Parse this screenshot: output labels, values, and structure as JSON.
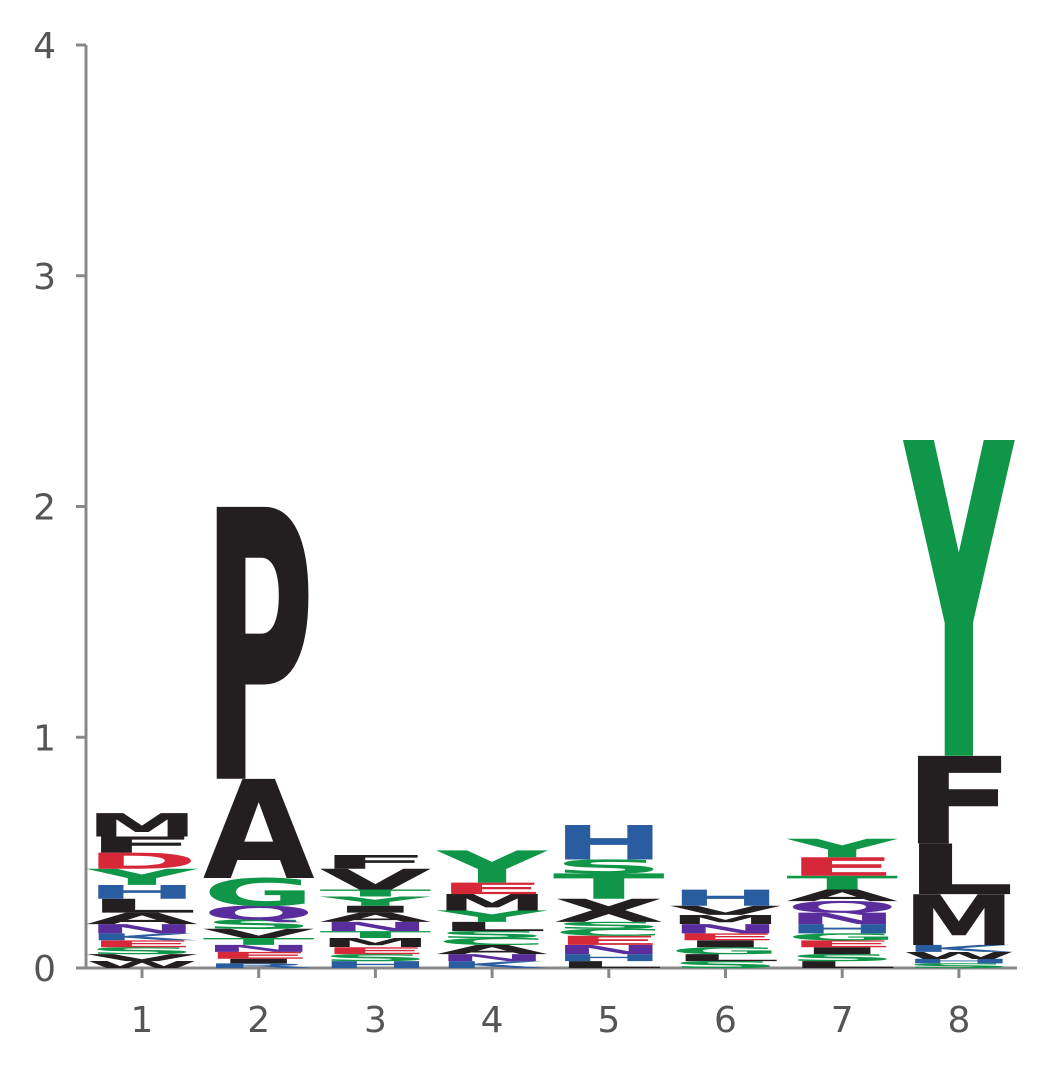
{
  "chart_data": {
    "type": "sequence-logo",
    "title": "",
    "xlabel": "",
    "ylabel": "",
    "ylim": [
      0,
      4
    ],
    "yticks": [
      0,
      1,
      2,
      3,
      4
    ],
    "positions": [
      1,
      2,
      3,
      4,
      5,
      6,
      7,
      8
    ],
    "colors": {
      "acidic": "#d62839",
      "basic": "#2a5d9f",
      "polar": "#0f9648",
      "neutral": "#5a2d9c",
      "hydrophobic": "#231f20"
    },
    "letter_color_group": {
      "A": "hydrophobic",
      "C": "polar",
      "D": "acidic",
      "E": "acidic",
      "F": "hydrophobic",
      "G": "polar",
      "H": "basic",
      "I": "hydrophobic",
      "K": "basic",
      "L": "hydrophobic",
      "M": "hydrophobic",
      "N": "neutral",
      "P": "hydrophobic",
      "Q": "neutral",
      "R": "basic",
      "S": "polar",
      "T": "polar",
      "V": "hydrophobic",
      "W": "hydrophobic",
      "Y": "polar"
    },
    "stacks": [
      {
        "position": 1,
        "letters": [
          {
            "letter": "W",
            "height": 0.03
          },
          {
            "letter": "V",
            "height": 0.03
          },
          {
            "letter": "S",
            "height": 0.03
          },
          {
            "letter": "E",
            "height": 0.03
          },
          {
            "letter": "K",
            "height": 0.03
          },
          {
            "letter": "N",
            "height": 0.04
          },
          {
            "letter": "A",
            "height": 0.05
          },
          {
            "letter": "L",
            "height": 0.06
          },
          {
            "letter": "H",
            "height": 0.06
          },
          {
            "letter": "Y",
            "height": 0.07
          },
          {
            "letter": "D",
            "height": 0.07
          },
          {
            "letter": "F",
            "height": 0.07
          },
          {
            "letter": "M",
            "height": 0.1
          }
        ]
      },
      {
        "position": 2,
        "letters": [
          {
            "letter": "R",
            "height": 0.02
          },
          {
            "letter": "I",
            "height": 0.02
          },
          {
            "letter": "E",
            "height": 0.03
          },
          {
            "letter": "N",
            "height": 0.03
          },
          {
            "letter": "T",
            "height": 0.03
          },
          {
            "letter": "V",
            "height": 0.04
          },
          {
            "letter": "S",
            "height": 0.04
          },
          {
            "letter": "Q",
            "height": 0.06
          },
          {
            "letter": "G",
            "height": 0.12
          },
          {
            "letter": "A",
            "height": 0.43
          },
          {
            "letter": "P",
            "height": 1.18
          }
        ]
      },
      {
        "position": 3,
        "letters": [
          {
            "letter": "H",
            "height": 0.03
          },
          {
            "letter": "S",
            "height": 0.03
          },
          {
            "letter": "E",
            "height": 0.03
          },
          {
            "letter": "M",
            "height": 0.04
          },
          {
            "letter": "T",
            "height": 0.03
          },
          {
            "letter": "N",
            "height": 0.04
          },
          {
            "letter": "A",
            "height": 0.04
          },
          {
            "letter": "I",
            "height": 0.03
          },
          {
            "letter": "Y",
            "height": 0.04
          },
          {
            "letter": "T",
            "height": 0.03
          },
          {
            "letter": "V",
            "height": 0.09
          },
          {
            "letter": "F",
            "height": 0.06
          }
        ]
      },
      {
        "position": 4,
        "letters": [
          {
            "letter": "K",
            "height": 0.03
          },
          {
            "letter": "N",
            "height": 0.03
          },
          {
            "letter": "A",
            "height": 0.04
          },
          {
            "letter": "C",
            "height": 0.03
          },
          {
            "letter": "S",
            "height": 0.03
          },
          {
            "letter": "L",
            "height": 0.04
          },
          {
            "letter": "Y",
            "height": 0.05
          },
          {
            "letter": "M",
            "height": 0.07
          },
          {
            "letter": "E",
            "height": 0.05
          },
          {
            "letter": "Y",
            "height": 0.14
          }
        ]
      },
      {
        "position": 5,
        "letters": [
          {
            "letter": "L",
            "height": 0.03
          },
          {
            "letter": "H",
            "height": 0.03
          },
          {
            "letter": "N",
            "height": 0.04
          },
          {
            "letter": "E",
            "height": 0.04
          },
          {
            "letter": "C",
            "height": 0.03
          },
          {
            "letter": "S",
            "height": 0.03
          },
          {
            "letter": "X",
            "height": 0.1
          },
          {
            "letter": "T",
            "height": 0.11
          },
          {
            "letter": "S",
            "height": 0.06
          },
          {
            "letter": "H",
            "height": 0.15
          }
        ]
      },
      {
        "position": 6,
        "letters": [
          {
            "letter": "S",
            "height": 0.03
          },
          {
            "letter": "L",
            "height": 0.03
          },
          {
            "letter": "G",
            "height": 0.03
          },
          {
            "letter": "I",
            "height": 0.03
          },
          {
            "letter": "E",
            "height": 0.03
          },
          {
            "letter": "N",
            "height": 0.04
          },
          {
            "letter": "M",
            "height": 0.04
          },
          {
            "letter": "V",
            "height": 0.04
          },
          {
            "letter": "H",
            "height": 0.07
          }
        ]
      },
      {
        "position": 7,
        "letters": [
          {
            "letter": "L",
            "height": 0.03
          },
          {
            "letter": "S",
            "height": 0.03
          },
          {
            "letter": "I",
            "height": 0.03
          },
          {
            "letter": "E",
            "height": 0.03
          },
          {
            "letter": "G",
            "height": 0.03
          },
          {
            "letter": "H",
            "height": 0.04
          },
          {
            "letter": "N",
            "height": 0.05
          },
          {
            "letter": "Q",
            "height": 0.05
          },
          {
            "letter": "A",
            "height": 0.05
          },
          {
            "letter": "T",
            "height": 0.06
          },
          {
            "letter": "E",
            "height": 0.08
          },
          {
            "letter": "Y",
            "height": 0.08
          }
        ]
      },
      {
        "position": 8,
        "letters": [
          {
            "letter": "S",
            "height": 0.02
          },
          {
            "letter": "H",
            "height": 0.02
          },
          {
            "letter": "W",
            "height": 0.03
          },
          {
            "letter": "K",
            "height": 0.03
          },
          {
            "letter": "M",
            "height": 0.22
          },
          {
            "letter": "L",
            "height": 0.22
          },
          {
            "letter": "F",
            "height": 0.38
          },
          {
            "letter": "Y",
            "height": 1.37
          }
        ]
      }
    ]
  }
}
